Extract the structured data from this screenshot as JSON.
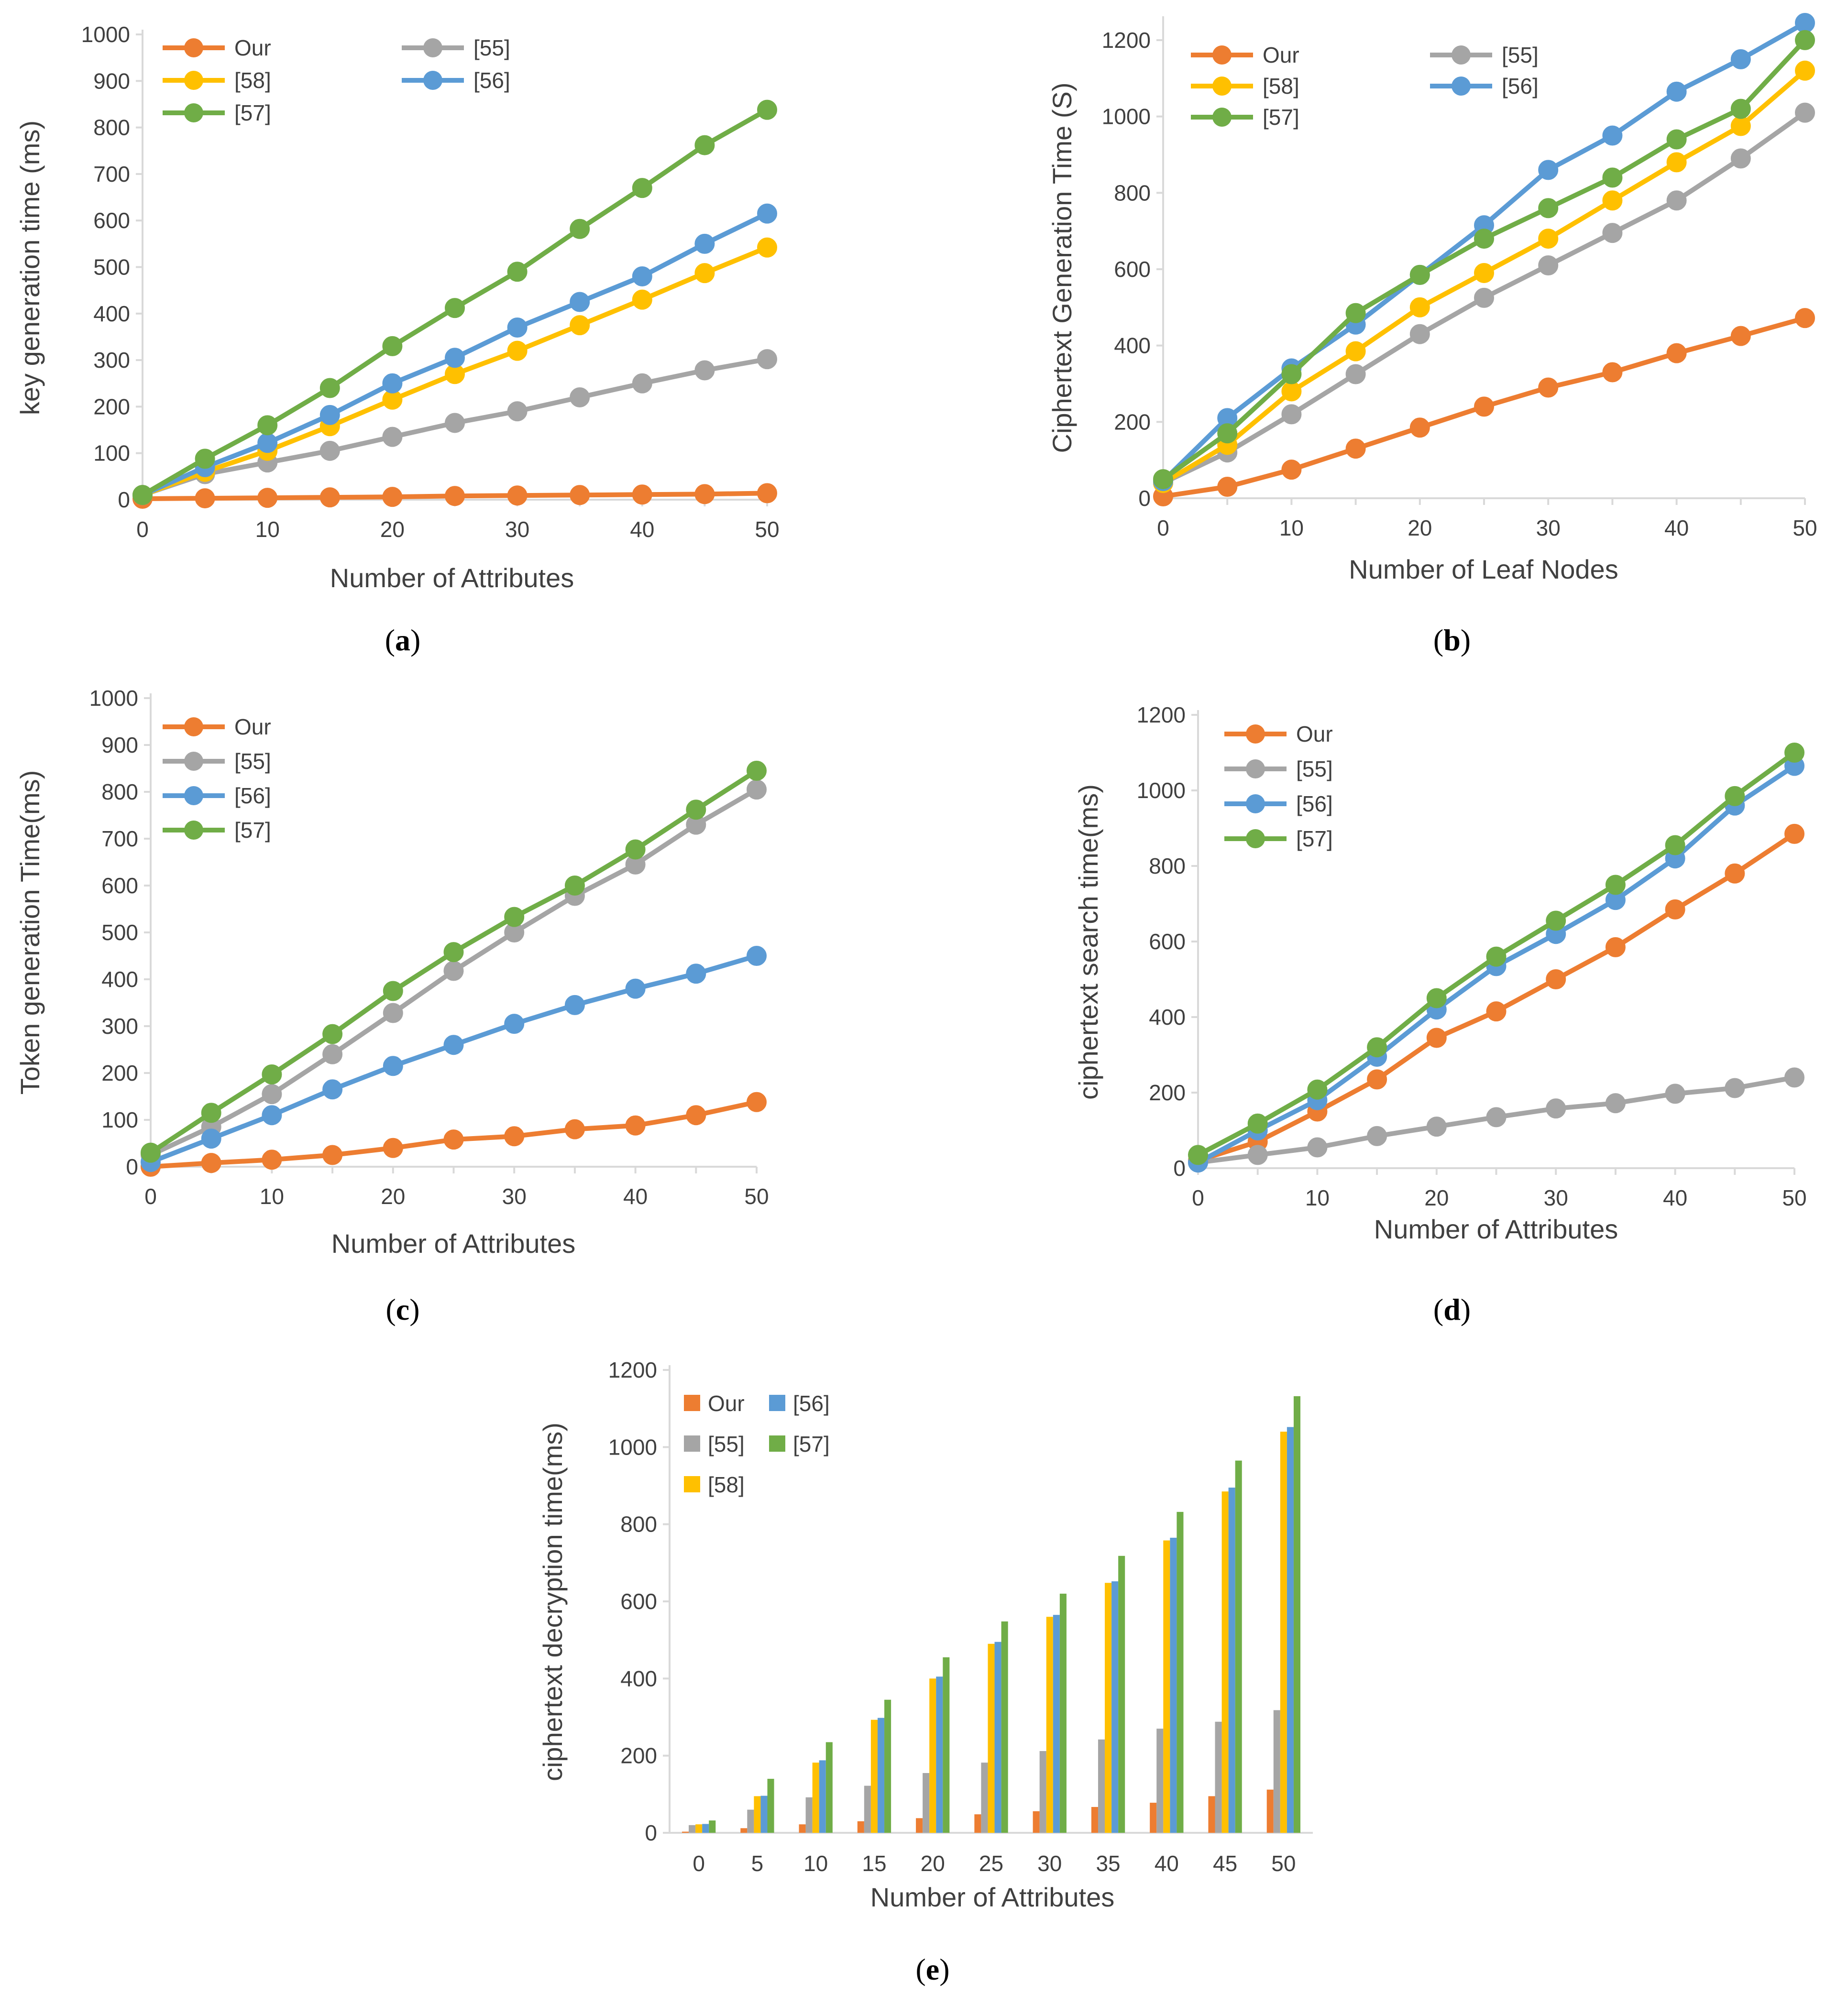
{
  "colors": {
    "our": "#ED7D31",
    "r55": "#A5A5A5",
    "r58": "#FFC000",
    "r56": "#5B9BD5",
    "r57": "#70AD47",
    "axis": "#D9D9D9",
    "text": "#404040"
  },
  "chart_data": [
    {
      "id": "a",
      "type": "line",
      "caption": "a",
      "xlabel": "Number of Attributes",
      "ylabel": "key generation time (ms)",
      "x": [
        0,
        5,
        10,
        15,
        20,
        25,
        30,
        35,
        40,
        45,
        50
      ],
      "xticks": [
        "0",
        "10",
        "20",
        "30",
        "40",
        "50"
      ],
      "ylim": [
        0,
        1000
      ],
      "yticks": [
        "0",
        "100",
        "200",
        "300",
        "400",
        "500",
        "600",
        "700",
        "800",
        "900",
        "1000"
      ],
      "legend_position": "top-left",
      "series": [
        {
          "name": "Our",
          "color_key": "our",
          "values": [
            2,
            3,
            4,
            5,
            6,
            8,
            9,
            10,
            11,
            12,
            14
          ]
        },
        {
          "name": "[55]",
          "color_key": "r55",
          "values": [
            10,
            55,
            80,
            105,
            135,
            165,
            190,
            220,
            250,
            278,
            302
          ]
        },
        {
          "name": "[58]",
          "color_key": "r58",
          "values": [
            10,
            60,
            105,
            158,
            215,
            270,
            320,
            375,
            430,
            487,
            542
          ]
        },
        {
          "name": "[56]",
          "color_key": "r56",
          "values": [
            10,
            70,
            122,
            182,
            250,
            305,
            370,
            425,
            480,
            550,
            615
          ]
        },
        {
          "name": "[57]",
          "color_key": "r57",
          "values": [
            10,
            88,
            160,
            240,
            330,
            412,
            490,
            582,
            670,
            762,
            838
          ]
        }
      ]
    },
    {
      "id": "b",
      "type": "line",
      "caption": "b",
      "xlabel": "Number of Leaf Nodes",
      "ylabel": "Ciphertext Generation Time (S)",
      "x": [
        0,
        5,
        10,
        15,
        20,
        25,
        30,
        35,
        40,
        45,
        50
      ],
      "xticks": [
        "0",
        "10",
        "20",
        "30",
        "40",
        "50"
      ],
      "ylim": [
        0,
        1250
      ],
      "yticks": [
        "0",
        "200",
        "400",
        "600",
        "800",
        "1000",
        "1200"
      ],
      "legend_position": "top-left",
      "series": [
        {
          "name": "Our",
          "color_key": "our",
          "values": [
            5,
            30,
            75,
            130,
            185,
            240,
            290,
            330,
            380,
            425,
            472
          ]
        },
        {
          "name": "[55]",
          "color_key": "r55",
          "values": [
            40,
            120,
            220,
            325,
            430,
            525,
            610,
            695,
            780,
            890,
            1010
          ]
        },
        {
          "name": "[58]",
          "color_key": "r58",
          "values": [
            40,
            140,
            280,
            385,
            500,
            590,
            680,
            780,
            880,
            975,
            1120
          ]
        },
        {
          "name": "[56]",
          "color_key": "r56",
          "values": [
            45,
            210,
            340,
            455,
            585,
            715,
            860,
            950,
            1065,
            1150,
            1245
          ]
        },
        {
          "name": "[57]",
          "color_key": "r57",
          "values": [
            50,
            170,
            325,
            485,
            585,
            680,
            760,
            840,
            940,
            1020,
            1200
          ]
        }
      ]
    },
    {
      "id": "c",
      "type": "line",
      "caption": "c",
      "xlabel": "Number of Attributes",
      "ylabel": "Token generation Time(ms)",
      "x": [
        0,
        5,
        10,
        15,
        20,
        25,
        30,
        35,
        40,
        45,
        50
      ],
      "xticks": [
        "0",
        "10",
        "20",
        "30",
        "40",
        "50"
      ],
      "ylim": [
        0,
        1000
      ],
      "yticks": [
        "0",
        "100",
        "200",
        "300",
        "400",
        "500",
        "600",
        "700",
        "800",
        "900",
        "1000"
      ],
      "legend_position": "top-left",
      "series": [
        {
          "name": "Our",
          "color_key": "our",
          "values": [
            0,
            8,
            15,
            25,
            40,
            58,
            65,
            80,
            88,
            110,
            138
          ]
        },
        {
          "name": "[55]",
          "color_key": "r55",
          "values": [
            25,
            85,
            155,
            240,
            328,
            418,
            500,
            578,
            645,
            730,
            805
          ]
        },
        {
          "name": "[56]",
          "color_key": "r56",
          "values": [
            10,
            60,
            110,
            165,
            215,
            260,
            305,
            345,
            380,
            412,
            450
          ]
        },
        {
          "name": "[57]",
          "color_key": "r57",
          "values": [
            30,
            115,
            197,
            283,
            375,
            458,
            533,
            600,
            677,
            762,
            845
          ]
        }
      ]
    },
    {
      "id": "d",
      "type": "line",
      "caption": "d",
      "xlabel": "Number of Attributes",
      "ylabel": "ciphertext search time(ms)",
      "x": [
        0,
        5,
        10,
        15,
        20,
        25,
        30,
        35,
        40,
        45,
        50
      ],
      "xticks": [
        "0",
        "10",
        "20",
        "30",
        "40",
        "50"
      ],
      "ylim": [
        0,
        1200
      ],
      "yticks": [
        "0",
        "200",
        "400",
        "600",
        "800",
        "1000",
        "1200"
      ],
      "legend_position": "top-left",
      "series": [
        {
          "name": "Our",
          "color_key": "our",
          "values": [
            20,
            70,
            150,
            235,
            345,
            415,
            500,
            585,
            685,
            780,
            885
          ]
        },
        {
          "name": "[55]",
          "color_key": "r55",
          "values": [
            15,
            35,
            55,
            85,
            110,
            135,
            158,
            172,
            197,
            212,
            240
          ]
        },
        {
          "name": "[56]",
          "color_key": "r56",
          "values": [
            15,
            100,
            180,
            295,
            420,
            535,
            620,
            710,
            820,
            960,
            1065
          ]
        },
        {
          "name": "[57]",
          "color_key": "r57",
          "values": [
            35,
            118,
            208,
            320,
            450,
            560,
            655,
            750,
            855,
            985,
            1100
          ]
        }
      ]
    },
    {
      "id": "e",
      "type": "bar",
      "caption": "e",
      "xlabel": "Number of Attributes",
      "ylabel": "ciphertext decryption time(ms)",
      "categories": [
        "0",
        "5",
        "10",
        "15",
        "20",
        "25",
        "30",
        "35",
        "40",
        "45",
        "50"
      ],
      "ylim": [
        0,
        1200
      ],
      "yticks": [
        "0",
        "200",
        "400",
        "600",
        "800",
        "1000",
        "1200"
      ],
      "legend_position": "top-left",
      "series": [
        {
          "name": "Our",
          "color_key": "our",
          "values": [
            3,
            12,
            22,
            30,
            38,
            48,
            56,
            67,
            78,
            95,
            112
          ]
        },
        {
          "name": "[55]",
          "color_key": "r55",
          "values": [
            20,
            60,
            92,
            122,
            155,
            182,
            212,
            242,
            270,
            288,
            318
          ]
        },
        {
          "name": "[58]",
          "color_key": "r58",
          "values": [
            22,
            95,
            182,
            293,
            400,
            490,
            560,
            648,
            758,
            885,
            1040
          ]
        },
        {
          "name": "[56]",
          "color_key": "r56",
          "values": [
            23,
            96,
            188,
            298,
            405,
            495,
            565,
            652,
            765,
            895,
            1052
          ]
        },
        {
          "name": "[57]",
          "color_key": "r57",
          "values": [
            32,
            140,
            235,
            345,
            455,
            548,
            620,
            718,
            832,
            965,
            1132
          ]
        }
      ]
    }
  ]
}
